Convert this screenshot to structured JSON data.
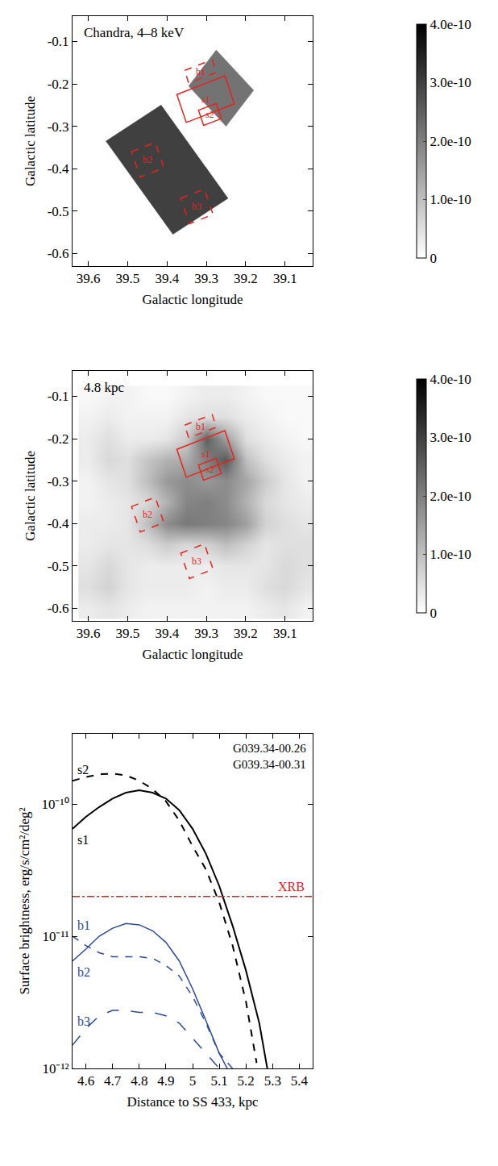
{
  "chart_data": [
    {
      "type": "map",
      "title": "Chandra, 4–8 keV",
      "xlabel": "Galactic longitude",
      "ylabel": "Galactic latitude",
      "xlim": [
        39.64,
        39.03
      ],
      "xticks": [
        39.6,
        39.5,
        39.4,
        39.3,
        39.2,
        39.1
      ],
      "ylim": [
        -0.63,
        -0.04
      ],
      "yticks": [
        -0.6,
        -0.5,
        -0.4,
        -0.3,
        -0.2,
        -0.1
      ],
      "colorbar": {
        "range": [
          0,
          4e-10
        ],
        "ticks": [
          0,
          {
            "value": 1e-10,
            "label": "1.0e-10"
          },
          {
            "value": 2e-10,
            "label": "2.0e-10"
          },
          {
            "value": 3e-10,
            "label": "3.0e-10"
          },
          {
            "value": 4e-10,
            "label": "4.0e-10"
          }
        ]
      },
      "fields": [
        {
          "x": [
            39.555,
            39.415,
            39.245,
            39.385
          ],
          "y": [
            -0.335,
            -0.25,
            -0.47,
            -0.555
          ],
          "value": 3e-10
        },
        {
          "x": [
            39.345,
            39.275,
            39.18,
            39.25
          ],
          "y": [
            -0.205,
            -0.12,
            -0.215,
            -0.3
          ],
          "value": 2.2e-10
        }
      ],
      "regions": [
        {
          "name": "s1",
          "line_style": "solid",
          "x": [
            39.375,
            39.253,
            39.229,
            39.351
          ],
          "y": [
            -0.225,
            -0.181,
            -0.247,
            -0.291
          ]
        },
        {
          "name": "s2",
          "line_style": "solid",
          "x": [
            39.32,
            39.275,
            39.262,
            39.307
          ],
          "y": [
            -0.262,
            -0.246,
            -0.282,
            -0.298
          ]
        },
        {
          "name": "b1",
          "line_style": "dash",
          "x": [
            39.355,
            39.285,
            39.275,
            39.345
          ],
          "y": [
            -0.168,
            -0.143,
            -0.173,
            -0.198
          ]
        },
        {
          "name": "b2",
          "line_style": "dash",
          "x": [
            39.49,
            39.43,
            39.408,
            39.468
          ],
          "y": [
            -0.36,
            -0.338,
            -0.398,
            -0.42
          ]
        },
        {
          "name": "b3",
          "line_style": "dash",
          "x": [
            39.365,
            39.305,
            39.283,
            39.343
          ],
          "y": [
            -0.47,
            -0.448,
            -0.508,
            -0.53
          ]
        }
      ]
    },
    {
      "type": "heatmap",
      "title": "4.8 kpc",
      "xlabel": "Galactic longitude",
      "ylabel": "Galactic latitude",
      "xlim": [
        39.64,
        39.03
      ],
      "xticks": [
        39.6,
        39.5,
        39.4,
        39.3,
        39.2,
        39.1
      ],
      "ylim": [
        -0.63,
        -0.04
      ],
      "yticks": [
        -0.6,
        -0.5,
        -0.4,
        -0.3,
        -0.2,
        -0.1
      ],
      "colorbar": {
        "range": [
          0,
          4e-10
        ],
        "ticks": [
          0,
          {
            "value": 1e-10,
            "label": "1.0e-10"
          },
          {
            "value": 2e-10,
            "label": "2.0e-10"
          },
          {
            "value": 3e-10,
            "label": "3.0e-10"
          },
          {
            "value": 4e-10,
            "label": "4.0e-10"
          }
        ]
      },
      "cells": {
        "x": [
          39.6,
          39.55,
          39.5,
          39.45,
          39.4,
          39.35,
          39.3,
          39.25,
          39.2,
          39.15,
          39.1,
          39.05
        ],
        "y": [
          -0.6,
          -0.55,
          -0.5,
          -0.45,
          -0.4,
          -0.35,
          -0.3,
          -0.25,
          -0.2,
          -0.15,
          -0.1
        ],
        "z": [
          [
            3e-11,
            4e-11,
            3e-11,
            2e-11,
            2e-11,
            2e-11,
            2e-11,
            2e-11,
            2e-11,
            3e-11,
            4e-11,
            2e-11
          ],
          [
            5e-11,
            7e-11,
            4e-11,
            3e-11,
            3e-11,
            3e-11,
            2e-11,
            3e-11,
            3e-11,
            5e-11,
            6e-11,
            4e-11
          ],
          [
            4e-11,
            6e-11,
            4e-11,
            3e-11,
            3e-11,
            3e-11,
            3e-11,
            4e-11,
            4e-11,
            4e-11,
            6e-11,
            5e-11
          ],
          [
            3e-11,
            4e-11,
            4e-11,
            5e-11,
            8e-11,
            6e-11,
            7e-11,
            1e-10,
            7e-11,
            4e-11,
            5e-11,
            5e-11
          ],
          [
            3e-11,
            3e-11,
            4e-11,
            1e-10,
            1.8e-10,
            2.1e-10,
            2e-10,
            1.9e-10,
            1.5e-10,
            7e-11,
            5e-11,
            4e-11
          ],
          [
            2e-11,
            3e-11,
            4e-11,
            6e-11,
            1.2e-10,
            1.9e-10,
            2e-10,
            1.8e-10,
            1.2e-10,
            6e-11,
            4e-11,
            3e-11
          ],
          [
            2e-11,
            4e-11,
            5e-11,
            1e-10,
            1.6e-10,
            1.8e-10,
            1.6e-10,
            1.8e-10,
            1.4e-10,
            8e-11,
            4e-11,
            2e-11
          ],
          [
            3e-11,
            6e-11,
            5e-11,
            9e-11,
            1.2e-10,
            1.3e-10,
            2e-10,
            2.6e-10,
            1e-10,
            5e-11,
            3e-11,
            2e-11
          ],
          [
            3e-11,
            5e-11,
            3e-11,
            3e-11,
            4e-11,
            8e-11,
            2.5e-10,
            1.5e-10,
            5e-11,
            3e-11,
            2e-11,
            1e-11
          ],
          [
            2e-11,
            3e-11,
            2e-11,
            2e-11,
            2e-11,
            4e-11,
            5e-11,
            5e-11,
            3e-11,
            2e-11,
            1e-11,
            1e-11
          ],
          [
            1e-11,
            2e-11,
            2e-11,
            1e-11,
            1e-11,
            2e-11,
            3e-11,
            3e-11,
            2e-11,
            1e-11,
            1e-11,
            1e-11
          ]
        ]
      },
      "regions": [
        {
          "name": "s1",
          "line_style": "solid",
          "x": [
            39.375,
            39.253,
            39.229,
            39.351
          ],
          "y": [
            -0.225,
            -0.181,
            -0.247,
            -0.291
          ]
        },
        {
          "name": "s2",
          "line_style": "solid",
          "x": [
            39.32,
            39.275,
            39.262,
            39.307
          ],
          "y": [
            -0.262,
            -0.246,
            -0.282,
            -0.298
          ]
        },
        {
          "name": "b1",
          "line_style": "dash",
          "x": [
            39.355,
            39.285,
            39.275,
            39.345
          ],
          "y": [
            -0.168,
            -0.143,
            -0.173,
            -0.198
          ]
        },
        {
          "name": "b2",
          "line_style": "dash",
          "x": [
            39.49,
            39.43,
            39.408,
            39.468
          ],
          "y": [
            -0.36,
            -0.338,
            -0.398,
            -0.42
          ]
        },
        {
          "name": "b3",
          "line_style": "dash",
          "x": [
            39.365,
            39.305,
            39.283,
            39.343
          ],
          "y": [
            -0.47,
            -0.448,
            -0.508,
            -0.53
          ]
        }
      ]
    },
    {
      "type": "line",
      "xlabel": "Distance to SS 433, kpc",
      "ylabel": "Surface brightness, erg/s/cm²/deg²",
      "annotations": [
        "G039.34-00.26",
        "G039.34-00.31"
      ],
      "log": "y",
      "xlim": [
        4.55,
        5.45
      ],
      "xticks": [
        4.6,
        4.7,
        4.8,
        4.9,
        5.0,
        5.1,
        5.2,
        5.3,
        5.4
      ],
      "ylim": [
        1e-12,
        3.4e-10
      ],
      "yticks": [
        {
          "value": 1e-12,
          "label": "10⁻¹²"
        },
        {
          "value": 1e-11,
          "label": "10⁻¹¹"
        },
        {
          "value": 1e-10,
          "label": "10⁻¹⁰"
        }
      ],
      "series": [
        {
          "name": "s2",
          "color": "#000000",
          "line_style": "dash",
          "x": [
            4.55,
            4.6,
            4.65,
            4.7,
            4.75,
            4.8,
            4.85,
            4.9,
            4.95,
            5.0,
            5.05,
            5.1,
            5.15,
            5.2,
            5.24
          ],
          "values": [
            1.5e-10,
            1.6e-10,
            1.68e-10,
            1.7e-10,
            1.65e-10,
            1.5e-10,
            1.3e-10,
            1.05e-10,
            7.5e-11,
            4.8e-11,
            3.2e-11,
            1.8e-11,
            8.5e-12,
            3.2e-12,
            1.1e-12
          ]
        },
        {
          "name": "s1",
          "color": "#000000",
          "line_style": "solid",
          "x": [
            4.55,
            4.6,
            4.65,
            4.7,
            4.75,
            4.8,
            4.85,
            4.9,
            4.95,
            5.0,
            5.05,
            5.1,
            5.15,
            5.2,
            5.25,
            5.28
          ],
          "values": [
            6.5e-11,
            8e-11,
            9.5e-11,
            1.1e-10,
            1.22e-10,
            1.27e-10,
            1.22e-10,
            1.1e-10,
            9e-11,
            6.5e-11,
            4.2e-11,
            2.4e-11,
            1.2e-11,
            5.5e-12,
            2.2e-12,
            1e-12
          ]
        },
        {
          "name": "b2",
          "color": "#2b4a9b",
          "line_style": "solid",
          "x": [
            4.55,
            4.6,
            4.65,
            4.7,
            4.75,
            4.8,
            4.85,
            4.9,
            4.95,
            5.0,
            5.05,
            5.1,
            5.13
          ],
          "values": [
            6.5e-12,
            8e-12,
            1e-11,
            1.15e-11,
            1.25e-11,
            1.22e-11,
            1.1e-11,
            9e-12,
            6.5e-12,
            4e-12,
            2.3e-12,
            1.3e-12,
            1e-12
          ]
        },
        {
          "name": "b1",
          "color": "#2b4a9b",
          "line_style": "dash",
          "x": [
            4.55,
            4.6,
            4.65,
            4.7,
            4.75,
            4.8,
            4.85,
            4.9,
            4.95,
            5.0,
            5.05,
            5.1,
            5.15
          ],
          "values": [
            1e-11,
            8.5e-12,
            7.5e-12,
            7e-12,
            7e-12,
            7e-12,
            6.8e-12,
            6e-12,
            5e-12,
            3.5e-12,
            2.2e-12,
            1.3e-12,
            1e-12
          ]
        },
        {
          "name": "b3",
          "color": "#2b4a9b",
          "line_style": "longdash",
          "x": [
            4.55,
            4.6,
            4.65,
            4.7,
            4.75,
            4.8,
            4.85,
            4.9,
            4.95,
            5.0,
            5.05,
            5.1
          ],
          "values": [
            1.5e-12,
            2e-12,
            2.5e-12,
            2.75e-12,
            2.75e-12,
            2.65e-12,
            2.65e-12,
            2.5e-12,
            2.2e-12,
            1.7e-12,
            1.3e-12,
            1e-12
          ]
        },
        {
          "name": "XRB",
          "color": "#d7261e",
          "line_style": "dashdot",
          "x": [
            4.55,
            5.45
          ],
          "values": [
            2e-11,
            2e-11
          ]
        }
      ]
    }
  ]
}
